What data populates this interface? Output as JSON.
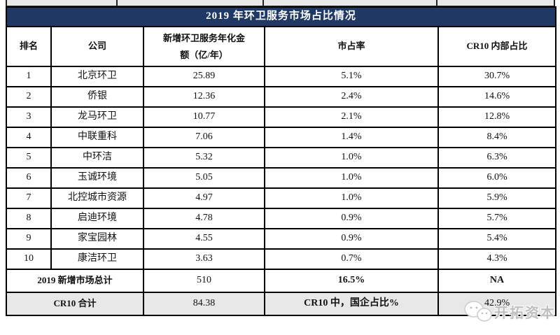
{
  "title": "2019 年环卫服务市场占比情况",
  "columns": [
    {
      "key": "rank",
      "label": "排名"
    },
    {
      "key": "company",
      "label": "公司"
    },
    {
      "key": "amount",
      "label_lines": [
        "新增环卫服务年化金",
        "额（亿/年）"
      ]
    },
    {
      "key": "share",
      "label": "市占率"
    },
    {
      "key": "cr10",
      "label": "CR10 内部占比"
    }
  ],
  "rows": [
    {
      "rank": "1",
      "company": "北京环卫",
      "amount": "25.89",
      "share": "5.1%",
      "cr10": "30.7%",
      "cr10_highlight": true
    },
    {
      "rank": "2",
      "company": "侨银",
      "amount": "12.36",
      "share": "2.4%",
      "cr10": "14.6%",
      "cr10_highlight": false
    },
    {
      "rank": "3",
      "company": "龙马环卫",
      "amount": "10.77",
      "share": "2.1%",
      "cr10": "12.8%",
      "cr10_highlight": false
    },
    {
      "rank": "4",
      "company": "中联重科",
      "amount": "7.06",
      "share": "1.4%",
      "cr10": "8.4%",
      "cr10_highlight": false
    },
    {
      "rank": "5",
      "company": "中环洁",
      "amount": "5.32",
      "share": "1.0%",
      "cr10": "6.3%",
      "cr10_highlight": true
    },
    {
      "rank": "6",
      "company": "玉诚环境",
      "amount": "5.05",
      "share": "1.0%",
      "cr10": "6.0%",
      "cr10_highlight": false
    },
    {
      "rank": "7",
      "company": "北控城市资源",
      "amount": "4.97",
      "share": "1.0%",
      "cr10": "5.9%",
      "cr10_highlight": true
    },
    {
      "rank": "8",
      "company": "启迪环境",
      "amount": "4.78",
      "share": "0.9%",
      "cr10": "5.7%",
      "cr10_highlight": false
    },
    {
      "rank": "9",
      "company": "家宝园林",
      "amount": "4.55",
      "share": "0.9%",
      "cr10": "5.4%",
      "cr10_highlight": false
    },
    {
      "rank": "10",
      "company": "康洁环卫",
      "amount": "3.63",
      "share": "0.7%",
      "cr10": "4.3%",
      "cr10_highlight": false
    }
  ],
  "summary_rows": [
    {
      "label": "2019 新增市场总计",
      "amount": "510",
      "share": "16.5%",
      "cr10": "NA"
    },
    {
      "label": "CR10 合计",
      "amount": "84.38",
      "share": "CR10 中，国企占比%",
      "cr10": "42.9%"
    }
  ],
  "watermark": {
    "text": "开拓资本"
  },
  "colors": {
    "title_bg": "#1F3864",
    "title_text": "#FFFFFF",
    "highlight_yellow": "#FBE7C5",
    "mid_gray": "#C9C9C9",
    "light_gray_row": "#E9E8E8",
    "border": "#000000"
  }
}
